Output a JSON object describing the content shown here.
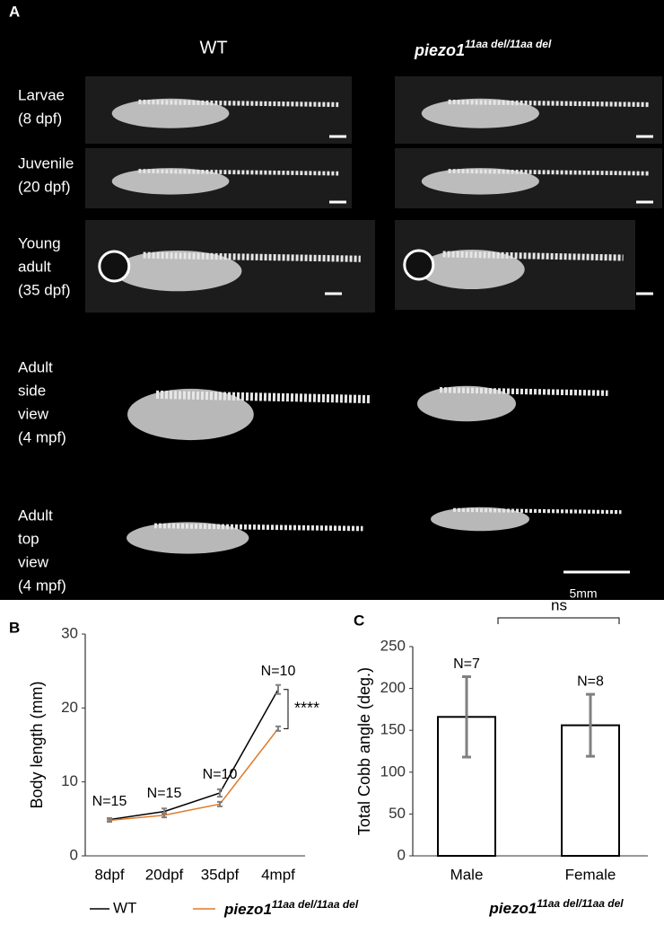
{
  "panel_a": {
    "label": "A",
    "wt": "WT",
    "mutant": {
      "gene": "piezo1",
      "allele": "11aa del/11aa del"
    },
    "rows": [
      [
        "Larvae",
        "(8 dpf)"
      ],
      [
        "Juvenile",
        "(20 dpf)"
      ],
      [
        "Young",
        "adult",
        "(35 dpf)"
      ],
      [
        "Adult",
        "side",
        "view",
        "(4 mpf)"
      ],
      [
        "Adult",
        "top",
        "view",
        "(4 mpf)"
      ]
    ],
    "scale_bar": "5mm"
  },
  "chart_data": [
    {
      "type": "line",
      "panel": "B",
      "y_label": "Body length (mm)",
      "categories": [
        "8dpf",
        "20dpf",
        "35dpf",
        "4mpf"
      ],
      "series": [
        {
          "name": "WT",
          "color": "#000000",
          "values": [
            4.9,
            6.0,
            8.5,
            22.5
          ],
          "errors": [
            0.2,
            0.4,
            0.5,
            0.6
          ]
        },
        {
          "name": "piezo1",
          "name_superscript": "11aa del/11aa del",
          "color": "#e07b2a",
          "values": [
            4.8,
            5.5,
            7.0,
            17.2
          ],
          "errors": [
            0.2,
            0.3,
            0.3,
            0.3
          ]
        }
      ],
      "n_labels": [
        "N=15",
        "N=15",
        "N=10",
        "N=10"
      ],
      "significance": "****",
      "ylim": [
        0,
        30
      ],
      "yticks": [
        0,
        10,
        20,
        30
      ],
      "error_color": "#808080"
    },
    {
      "type": "bar",
      "panel": "C",
      "y_label": "Total Cobb angle (deg.)",
      "x_label": {
        "gene": "piezo1",
        "allele": "11aa del/11aa del"
      },
      "categories": [
        "Male",
        "Female"
      ],
      "values": [
        166,
        156
      ],
      "errors": [
        48,
        37
      ],
      "n_labels": [
        "N=7",
        "N=8"
      ],
      "significance": "ns",
      "color": "#ffffff",
      "ylim": [
        0,
        250
      ],
      "yticks": [
        0,
        50,
        100,
        150,
        200,
        250
      ],
      "error_color": "#808080"
    }
  ]
}
